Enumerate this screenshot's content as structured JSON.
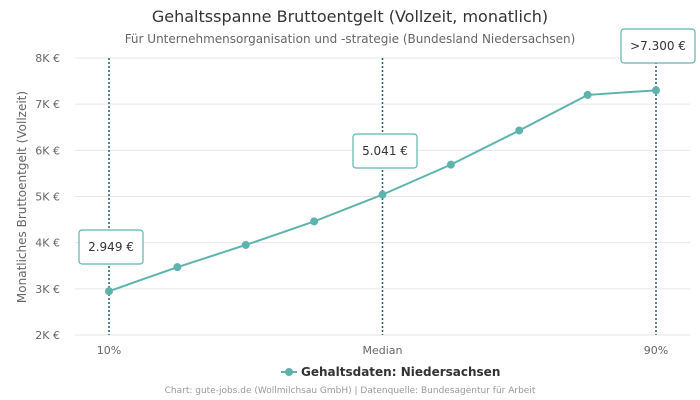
{
  "chart_data": {
    "type": "line",
    "title": "Gehaltsspanne Bruttoentgelt (Vollzeit, monatlich)",
    "subtitle": "Für Unternehmensorganisation und -strategie (Bundesland Niedersachsen)",
    "ylabel": "Monatliches Bruttoentgelt (Vollzeit)",
    "xlabel": "",
    "ylim": [
      2000,
      8000
    ],
    "y_ticks": [
      {
        "value": 2000,
        "label": "2K €"
      },
      {
        "value": 3000,
        "label": "3K €"
      },
      {
        "value": 4000,
        "label": "4K €"
      },
      {
        "value": 5000,
        "label": "5K €"
      },
      {
        "value": 6000,
        "label": "6K €"
      },
      {
        "value": 7000,
        "label": "7K €"
      },
      {
        "value": 8000,
        "label": "8K €"
      }
    ],
    "x_ticks": [
      {
        "percentile": 10,
        "label": "10%"
      },
      {
        "percentile": 50,
        "label": "Median"
      },
      {
        "percentile": 90,
        "label": "90%"
      }
    ],
    "grid": true,
    "legend_position": "bottom",
    "series": [
      {
        "name": "Gehaltsdaten: Niedersachsen",
        "color": "#5fb3ad",
        "points": [
          {
            "percentile": 10,
            "value": 2949
          },
          {
            "percentile": 20,
            "value": 3470
          },
          {
            "percentile": 30,
            "value": 3950
          },
          {
            "percentile": 40,
            "value": 4460
          },
          {
            "percentile": 50,
            "value": 5041
          },
          {
            "percentile": 60,
            "value": 5690
          },
          {
            "percentile": 70,
            "value": 6430
          },
          {
            "percentile": 80,
            "value": 7200
          },
          {
            "percentile": 90,
            "value": 7300
          }
        ]
      }
    ],
    "annotations": [
      {
        "percentile": 10,
        "value": 2949,
        "label": "2.949 €"
      },
      {
        "percentile": 50,
        "value": 5041,
        "label": "5.041 €"
      },
      {
        "percentile": 90,
        "value": 7300,
        "label": ">7.300 €"
      }
    ]
  },
  "footer": "Chart: gute-jobs.de (Wollmilchsau GmbH) | Datenquelle: Bundesagentur für Arbeit",
  "colors": {
    "line": "#5fb3ad",
    "marker_line": "#1f5f86",
    "grid": "#e6e6e6",
    "callout_border": "#5fb3ad"
  }
}
